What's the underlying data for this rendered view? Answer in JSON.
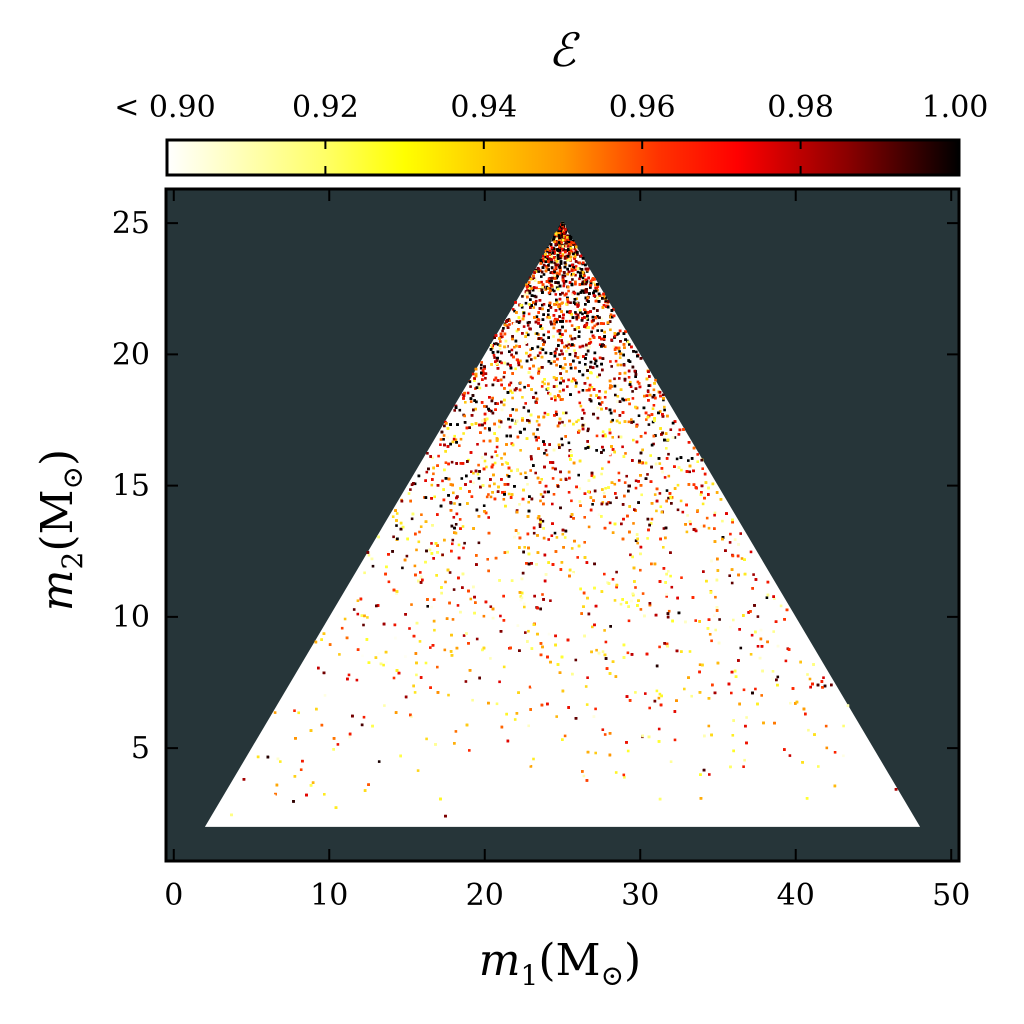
{
  "chart_data": {
    "type": "scatter",
    "description_free": true,
    "xlabel": "m_1(M_⊙)",
    "xlabel_var": "m",
    "xlabel_sub": "1",
    "xlabel_unit_open": "(M",
    "xlabel_unit_sub": "⊙",
    "xlabel_unit_close": ")",
    "ylabel_var": "m",
    "ylabel_sub": "2",
    "ylabel_unit_open": "(M",
    "ylabel_unit_sub": "⊙",
    "ylabel_unit_close": ")",
    "xlim": [
      -0.5,
      50.5
    ],
    "ylim": [
      0.7,
      26.3
    ],
    "x_ticks": [
      0,
      10,
      20,
      30,
      40,
      50
    ],
    "x_tick_labels": [
      "0",
      "10",
      "20",
      "30",
      "40",
      "50"
    ],
    "y_ticks": [
      5,
      10,
      15,
      20,
      25
    ],
    "y_tick_labels": [
      "5",
      "10",
      "15",
      "20",
      "25"
    ],
    "region": {
      "vertices": [
        [
          2,
          2
        ],
        [
          48,
          2
        ],
        [
          25,
          25
        ]
      ],
      "m_min": 2,
      "m_total_max": 50
    },
    "colorbar": {
      "label": "ℰ",
      "range": [
        0.9,
        1.0
      ],
      "ticks": [
        0.9,
        0.92,
        0.94,
        0.96,
        0.98,
        1.0
      ],
      "tick_labels": [
        "< 0.90",
        "0.92",
        "0.94",
        "0.96",
        "0.98",
        "1.00"
      ],
      "colormap": "hot_r"
    },
    "colors": {
      "background": "#263539",
      "cmap_stops": [
        "#ffffff",
        "#ffff00",
        "#ff8c00",
        "#ff0000",
        "#a00000",
        "#000000"
      ]
    }
  }
}
